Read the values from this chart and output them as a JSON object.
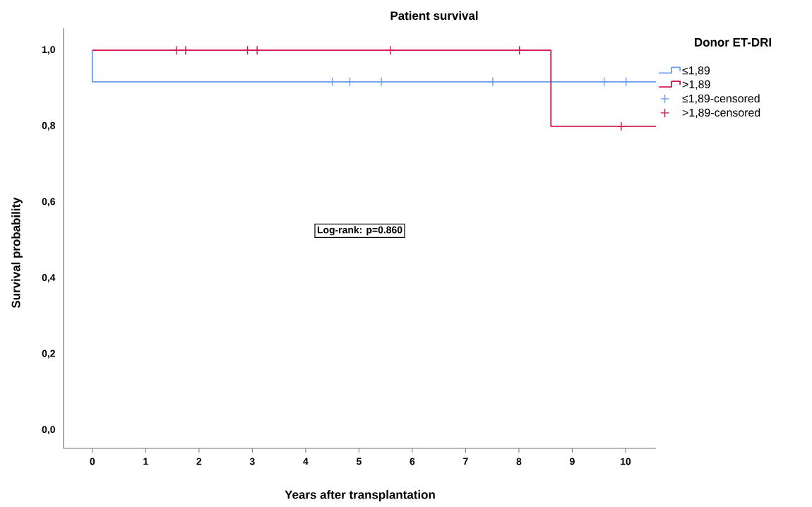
{
  "chart_data": {
    "type": "step",
    "title": "Patient survival",
    "xlabel": "Years after transplantation",
    "ylabel": "Survival probability",
    "legend_title": "Donor ET-DRI",
    "legend": "right",
    "annotations": [
      "Log-rank: p=0.860"
    ],
    "xlim": [
      -0.54,
      10.57
    ],
    "ylim": [
      -0.048,
      1.058
    ],
    "xticks": [
      0,
      1,
      2,
      3,
      4,
      5,
      6,
      7,
      8,
      9,
      10
    ],
    "yticks": [
      {
        "value": 0,
        "label": "0,0"
      },
      {
        "value": 0.2,
        "label": "0,2"
      },
      {
        "value": 0.4,
        "label": "0,4"
      },
      {
        "value": 0.6,
        "label": "0,6"
      },
      {
        "value": 0.8,
        "label": "0,8"
      },
      {
        "value": 1,
        "label": "1,0"
      }
    ],
    "grid": false,
    "series": [
      {
        "name": "≤1,89",
        "color": "#6a9ee8",
        "marker": "none",
        "x": [
          0,
          0,
          10.57
        ],
        "values": [
          1,
          0.917,
          0.917
        ]
      },
      {
        "name": ">1,89",
        "color": "#d4144a",
        "marker": "none",
        "x": [
          0,
          8.6,
          10.57
        ],
        "values": [
          1,
          0.8,
          0.8
        ]
      },
      {
        "name": "≤1,89-censored",
        "color": "#6a9ee8",
        "type": "scatter",
        "marker": "cross",
        "x": [
          4.5,
          4.83,
          5.42,
          7.51,
          9.6,
          10.01
        ],
        "values": [
          0.917,
          0.917,
          0.917,
          0.917,
          0.917,
          0.917
        ]
      },
      {
        "name": ">1,89-censored",
        "color": "#d4144a",
        "type": "scatter",
        "marker": "cross",
        "x": [
          1.58,
          1.75,
          2.91,
          3.09,
          5.59,
          8.01,
          9.92
        ],
        "values": [
          1,
          1,
          1,
          1,
          1,
          1,
          0.8
        ]
      }
    ]
  }
}
